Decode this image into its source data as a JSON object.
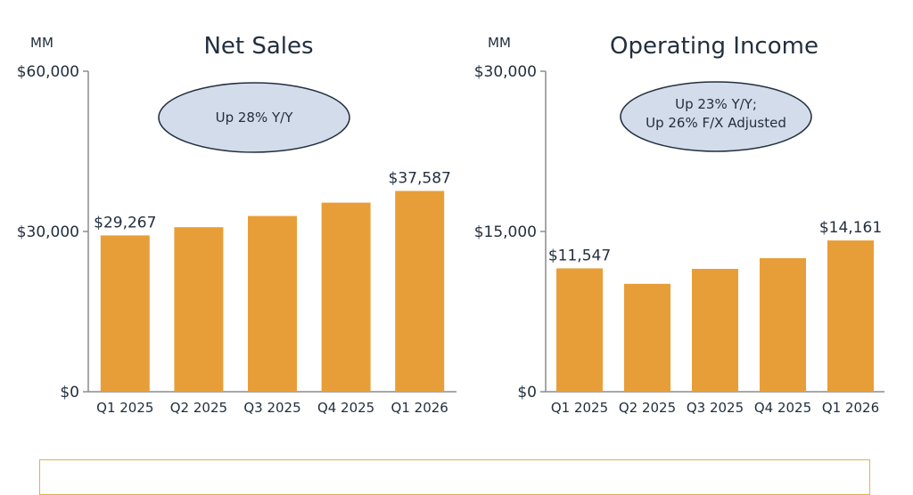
{
  "chart_data": [
    {
      "type": "bar",
      "title": "Net Sales",
      "unit": "MM",
      "categories": [
        "Q1 2025",
        "Q2 2025",
        "Q3 2025",
        "Q4 2025",
        "Q1 2026"
      ],
      "values": [
        29267,
        30800,
        32900,
        35400,
        37587
      ],
      "data_labels": [
        "$29,267",
        "",
        "",
        "",
        "$37,587"
      ],
      "ylim": [
        0,
        60000
      ],
      "yticks": [
        0,
        30000,
        60000
      ],
      "ytick_labels": [
        "$0",
        "$30,000",
        "$60,000"
      ],
      "callout": [
        "Up 28% Y/Y"
      ],
      "grid": false,
      "color": "#e89e38"
    },
    {
      "type": "bar",
      "title": "Operating Income",
      "unit": "MM",
      "categories": [
        "Q1 2025",
        "Q2 2025",
        "Q3 2025",
        "Q4 2025",
        "Q1 2026"
      ],
      "values": [
        11547,
        10100,
        11500,
        12500,
        14161
      ],
      "data_labels": [
        "$11,547",
        "",
        "",
        "",
        "$14,161"
      ],
      "ylim": [
        0,
        30000
      ],
      "yticks": [
        0,
        15000,
        30000
      ],
      "ytick_labels": [
        "$0",
        "$15,000",
        "$30,000"
      ],
      "callout": [
        "Up 23% Y/Y;",
        "Up 26% F/X Adjusted"
      ],
      "grid": false,
      "color": "#e89e38"
    }
  ]
}
